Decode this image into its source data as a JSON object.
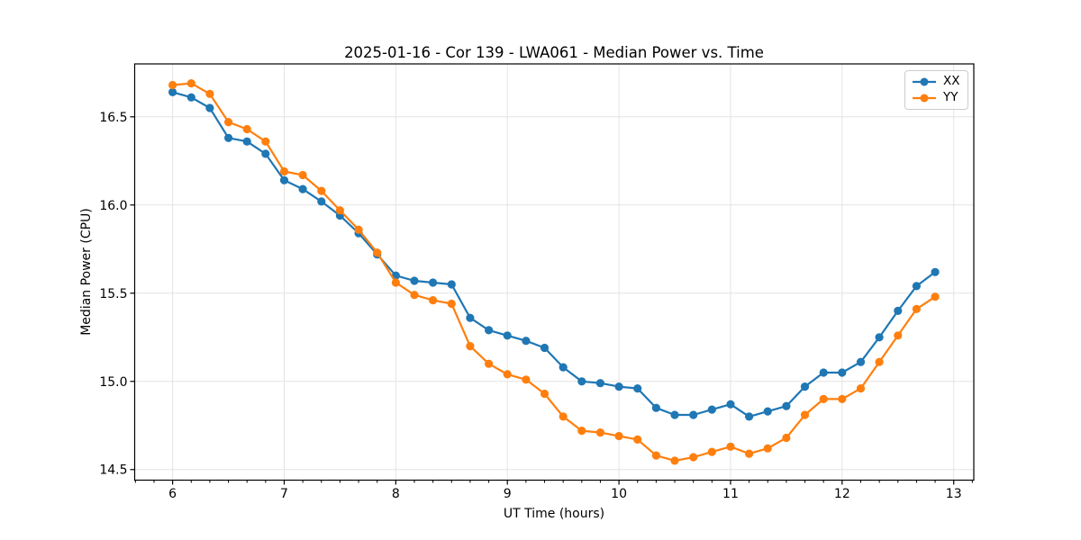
{
  "figure": {
    "title": "2025-01-16 - Cor 139 - LWA061 - Median Power vs. Time"
  },
  "chart_data": {
    "type": "line",
    "title": "2025-01-16 - Cor 139 - LWA061 - Median Power vs. Time",
    "xlabel": "UT Time (hours)",
    "ylabel": "Median Power (CPU)",
    "xlim": [
      5.66,
      13.18
    ],
    "ylim": [
      14.44,
      16.8
    ],
    "grid": true,
    "legend_position": "upper right",
    "x_major_ticks": [
      6,
      7,
      8,
      9,
      10,
      11,
      12,
      13
    ],
    "x_tick_labels": [
      "6",
      "7",
      "8",
      "9",
      "10",
      "11",
      "12",
      "13"
    ],
    "x_minor_tick_step": 0.16667,
    "y_major_ticks": [
      14.5,
      15.0,
      15.5,
      16.0,
      16.5
    ],
    "y_tick_labels": [
      "14.5",
      "15.0",
      "15.5",
      "16.0",
      "16.5"
    ],
    "x": [
      6.0,
      6.1667,
      6.3333,
      6.5,
      6.6667,
      6.8333,
      7.0,
      7.1667,
      7.3333,
      7.5,
      7.6667,
      7.8333,
      8.0,
      8.1667,
      8.3333,
      8.5,
      8.6667,
      8.8333,
      9.0,
      9.1667,
      9.3333,
      9.5,
      9.6667,
      9.8333,
      10.0,
      10.1667,
      10.3333,
      10.5,
      10.6667,
      10.8333,
      11.0,
      11.1667,
      11.3333,
      11.5,
      11.6667,
      11.8333,
      12.0,
      12.1667,
      12.3333,
      12.5,
      12.6667,
      12.8333
    ],
    "series": [
      {
        "name": "XX",
        "color": "#1f77b4",
        "values": [
          16.64,
          16.61,
          16.55,
          16.38,
          16.36,
          16.29,
          16.14,
          16.09,
          16.02,
          15.94,
          15.84,
          15.72,
          15.6,
          15.57,
          15.56,
          15.55,
          15.36,
          15.29,
          15.26,
          15.23,
          15.19,
          15.08,
          15.0,
          14.99,
          14.97,
          14.96,
          14.85,
          14.81,
          14.81,
          14.84,
          14.87,
          14.8,
          14.83,
          14.86,
          14.97,
          15.05,
          15.05,
          15.11,
          15.25,
          15.4,
          15.54,
          15.62
        ]
      },
      {
        "name": "YY",
        "color": "#ff7f0e",
        "values": [
          16.68,
          16.69,
          16.63,
          16.47,
          16.43,
          16.36,
          16.19,
          16.17,
          16.08,
          15.97,
          15.86,
          15.73,
          15.56,
          15.49,
          15.46,
          15.44,
          15.2,
          15.1,
          15.04,
          15.01,
          14.93,
          14.8,
          14.72,
          14.71,
          14.69,
          14.67,
          14.58,
          14.55,
          14.57,
          14.6,
          14.63,
          14.59,
          14.62,
          14.68,
          14.81,
          14.9,
          14.9,
          14.96,
          15.11,
          15.26,
          15.41,
          15.48
        ]
      }
    ]
  }
}
